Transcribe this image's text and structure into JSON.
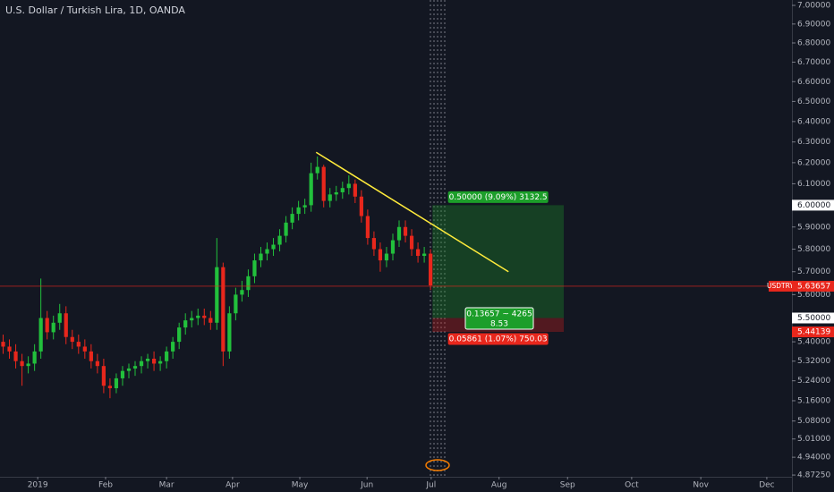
{
  "chart_data": {
    "type": "candlestick",
    "title": "U.S. Dollar / Turkish Lira, 1D, OANDA",
    "log_scale": true,
    "up_color": "#22c03c",
    "down_color": "#e8271c",
    "open": [
      5.4,
      5.38,
      5.36,
      5.32,
      5.3,
      5.31,
      5.36,
      5.5,
      5.44,
      5.48,
      5.52,
      5.42,
      5.4,
      5.38,
      5.36,
      5.32,
      5.3,
      5.22,
      5.21,
      5.25,
      5.28,
      5.29,
      5.3,
      5.32,
      5.33,
      5.31,
      5.32,
      5.36,
      5.4,
      5.46,
      5.49,
      5.5,
      5.51,
      5.5,
      5.48,
      5.72,
      5.36,
      5.52,
      5.6,
      5.62,
      5.68,
      5.75,
      5.78,
      5.8,
      5.82,
      5.86,
      5.92,
      5.96,
      5.99,
      6.0,
      6.15,
      6.18,
      6.02,
      6.05,
      6.06,
      6.08,
      6.1,
      6.04,
      5.95,
      5.85,
      5.8,
      5.75,
      5.78,
      5.84,
      5.9,
      5.86,
      5.8,
      5.77,
      5.78
    ],
    "high": [
      5.43,
      5.41,
      5.39,
      5.35,
      5.34,
      5.39,
      5.67,
      5.53,
      5.51,
      5.56,
      5.55,
      5.45,
      5.43,
      5.41,
      5.39,
      5.35,
      5.33,
      5.25,
      5.27,
      5.3,
      5.31,
      5.32,
      5.34,
      5.35,
      5.36,
      5.34,
      5.38,
      5.42,
      5.48,
      5.52,
      5.53,
      5.54,
      5.54,
      5.53,
      5.85,
      5.74,
      5.55,
      5.63,
      5.66,
      5.71,
      5.78,
      5.81,
      5.83,
      5.85,
      5.89,
      5.95,
      5.99,
      6.02,
      6.03,
      6.2,
      6.23,
      6.19,
      6.08,
      6.09,
      6.11,
      6.14,
      6.12,
      6.07,
      5.98,
      5.88,
      5.83,
      5.81,
      5.87,
      5.93,
      5.93,
      5.89,
      5.83,
      5.81,
      5.8
    ],
    "low": [
      5.35,
      5.33,
      5.29,
      5.22,
      5.27,
      5.28,
      5.33,
      5.41,
      5.41,
      5.45,
      5.39,
      5.37,
      5.35,
      5.33,
      5.29,
      5.27,
      5.19,
      5.17,
      5.19,
      5.22,
      5.25,
      5.26,
      5.27,
      5.29,
      5.28,
      5.28,
      5.29,
      5.33,
      5.37,
      5.43,
      5.46,
      5.47,
      5.47,
      5.45,
      5.45,
      5.3,
      5.33,
      5.49,
      5.57,
      5.59,
      5.65,
      5.72,
      5.75,
      5.77,
      5.79,
      5.83,
      5.89,
      5.93,
      5.96,
      5.97,
      6.12,
      5.99,
      5.99,
      6.02,
      6.03,
      6.05,
      6.01,
      5.92,
      5.82,
      5.77,
      5.7,
      5.72,
      5.75,
      5.81,
      5.83,
      5.77,
      5.74,
      5.74,
      5.62
    ],
    "close": [
      5.38,
      5.36,
      5.32,
      5.3,
      5.31,
      5.36,
      5.5,
      5.44,
      5.48,
      5.52,
      5.42,
      5.4,
      5.38,
      5.36,
      5.32,
      5.3,
      5.22,
      5.21,
      5.25,
      5.28,
      5.29,
      5.3,
      5.32,
      5.33,
      5.31,
      5.32,
      5.36,
      5.4,
      5.46,
      5.49,
      5.5,
      5.51,
      5.5,
      5.48,
      5.72,
      5.36,
      5.52,
      5.6,
      5.62,
      5.68,
      5.75,
      5.78,
      5.8,
      5.82,
      5.86,
      5.92,
      5.96,
      5.99,
      6.0,
      6.15,
      6.18,
      6.02,
      6.05,
      6.06,
      6.08,
      6.1,
      6.04,
      5.95,
      5.85,
      5.8,
      5.75,
      5.78,
      5.84,
      5.9,
      5.86,
      5.8,
      5.77,
      5.78,
      5.64
    ],
    "xlim": [
      0,
      126
    ],
    "xticks": [
      {
        "value": 6.0,
        "label": "2019"
      },
      {
        "value": 16.8,
        "label": "Feb"
      },
      {
        "value": 26.5,
        "label": "Mar"
      },
      {
        "value": 37.0,
        "label": "Apr"
      },
      {
        "value": 47.7,
        "label": "May"
      },
      {
        "value": 58.4,
        "label": "Jun"
      },
      {
        "value": 68.6,
        "label": "Jul"
      },
      {
        "value": 79.4,
        "label": "Aug"
      },
      {
        "value": 90.3,
        "label": "Sep"
      },
      {
        "value": 100.5,
        "label": "Oct"
      },
      {
        "value": 111.5,
        "label": "Nov"
      },
      {
        "value": 122.0,
        "label": "Dec"
      }
    ],
    "ylim": [
      4.866,
      7.029
    ],
    "yticks": [
      {
        "value": 7.0,
        "label": "7.00000"
      },
      {
        "value": 6.9,
        "label": "6.90000"
      },
      {
        "value": 6.8,
        "label": "6.80000"
      },
      {
        "value": 6.7,
        "label": "6.70000"
      },
      {
        "value": 6.6,
        "label": "6.60000"
      },
      {
        "value": 6.5,
        "label": "6.50000"
      },
      {
        "value": 6.4,
        "label": "6.40000"
      },
      {
        "value": 6.3,
        "label": "6.30000"
      },
      {
        "value": 6.2,
        "label": "6.20000"
      },
      {
        "value": 6.1,
        "label": "6.10000"
      },
      {
        "value": 5.9,
        "label": "5.90000"
      },
      {
        "value": 5.8,
        "label": "5.80000"
      },
      {
        "value": 5.7,
        "label": "5.70000"
      },
      {
        "value": 5.6,
        "label": "5.60000"
      },
      {
        "value": 5.4,
        "label": "5.40000"
      },
      {
        "value": 5.32,
        "label": "5.32000"
      },
      {
        "value": 5.24,
        "label": "5.24000"
      },
      {
        "value": 5.16,
        "label": "5.16000"
      },
      {
        "value": 5.08,
        "label": "5.08000"
      },
      {
        "value": 5.01,
        "label": "5.01000"
      },
      {
        "value": 4.94,
        "label": "4.94000"
      },
      {
        "value": 4.8725,
        "label": "4.87250"
      }
    ],
    "current_price": {
      "symbol": "USDTRY",
      "value": 5.63657,
      "label": "5.63657"
    },
    "trendline": {
      "x": [
        50.3,
        80.9
      ],
      "y": [
        6.25,
        5.7
      ],
      "color": "#ffeb3b"
    },
    "position": {
      "x": [
        68.8,
        89.7
      ],
      "target": 6.0,
      "target_label": "6.00000",
      "entry": 5.5,
      "entry_label": "5.50000",
      "stop": 5.44139,
      "stop_label": "5.44139",
      "target_text": "0.50000 (9.09%) 3132.5",
      "pnl_text": [
        "0.13657 ~ 4265",
        "8.53"
      ],
      "stop_text": "0.05861 (1.07%) 750.03"
    }
  }
}
